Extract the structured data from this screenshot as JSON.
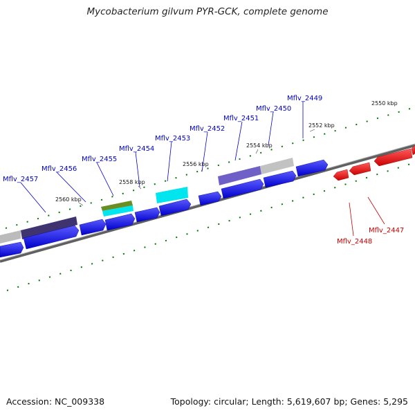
{
  "title": "Mycobacterium gilvum PYR-GCK, complete genome",
  "footer": {
    "accession": "Accession: NC_009338",
    "summary": "Topology: circular; Length: 5,619,607 bp; Genes: 5,295"
  },
  "ticks": [
    "2550 kbp",
    "2552 kbp",
    "2554 kbp",
    "2556 kbp",
    "2558 kbp",
    "2560 kbp"
  ],
  "genes_forward": [
    "Mflv_2449",
    "Mflv_2450",
    "Mflv_2451",
    "Mflv_2452",
    "Mflv_2453",
    "Mflv_2454",
    "Mflv_2455",
    "Mflv_2456",
    "Mflv_2457"
  ],
  "genes_reverse": [
    "Mflv_2447",
    "Mflv_2448"
  ],
  "colors": {
    "forward_gene": "#0000ff",
    "reverse_gene": "#ff0000",
    "backbone": "#808080",
    "tick": "#007700",
    "label_forward": "#0000cc",
    "label_reverse": "#cc0000",
    "feature_cyan": "#00e5ee",
    "feature_olive": "#6b8e23",
    "feature_purple": "#4b3f8f",
    "feature_gray": "#bbbbbb"
  }
}
